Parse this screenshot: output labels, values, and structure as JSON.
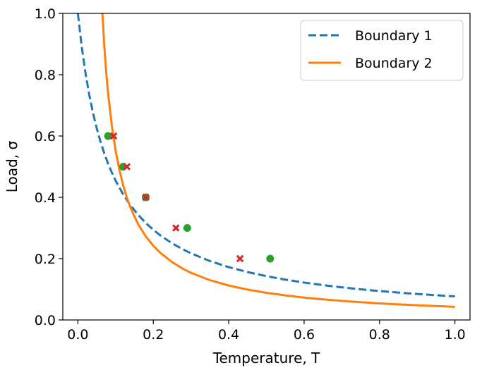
{
  "chart_data": {
    "type": "line",
    "title": "",
    "xlabel": "Temperature, T",
    "ylabel": "Load, σ",
    "xlim": [
      -0.04,
      1.04
    ],
    "ylim": [
      0.0,
      1.0
    ],
    "xticks": [
      0.0,
      0.2,
      0.4,
      0.6,
      0.8,
      1.0
    ],
    "xtick_labels": [
      "0.0",
      "0.2",
      "0.4",
      "0.6",
      "0.8",
      "1.0"
    ],
    "yticks": [
      0.0,
      0.2,
      0.4,
      0.6,
      0.8,
      1.0
    ],
    "ytick_labels": [
      "0.0",
      "0.2",
      "0.4",
      "0.6",
      "0.8",
      "1.0"
    ],
    "grid": false,
    "legend_position": "top-right",
    "series": [
      {
        "name": "Boundary 1",
        "style": "dashed",
        "color": "#1f77b4",
        "x": [
          0.0,
          0.01,
          0.02,
          0.03,
          0.04,
          0.05,
          0.06,
          0.07,
          0.08,
          0.09,
          0.1,
          0.12,
          0.14,
          0.16,
          0.18,
          0.2,
          0.22,
          0.25,
          0.28,
          0.3,
          0.35,
          0.4,
          0.45,
          0.5,
          0.55,
          0.6,
          0.65,
          0.7,
          0.75,
          0.8,
          0.85,
          0.9,
          0.95,
          1.0
        ],
        "y": [
          1.0,
          0.8929,
          0.8065,
          0.7353,
          0.6757,
          0.625,
          0.5814,
          0.5435,
          0.5102,
          0.4808,
          0.4545,
          0.4098,
          0.3731,
          0.3425,
          0.3165,
          0.2941,
          0.2747,
          0.25,
          0.2294,
          0.2174,
          0.1923,
          0.1724,
          0.1563,
          0.1429,
          0.1316,
          0.122,
          0.1136,
          0.1064,
          0.1,
          0.0943,
          0.0893,
          0.0847,
          0.0806,
          0.0769
        ]
      },
      {
        "name": "Boundary 2",
        "style": "solid",
        "color": "#ff7f0e",
        "x": [
          0.065,
          0.07,
          0.075,
          0.08,
          0.09,
          0.1,
          0.11,
          0.12,
          0.13,
          0.14,
          0.16,
          0.18,
          0.2,
          0.22,
          0.25,
          0.28,
          0.3,
          0.35,
          0.4,
          0.45,
          0.5,
          0.55,
          0.6,
          0.65,
          0.7,
          0.75,
          0.8,
          0.85,
          0.9,
          0.95,
          1.0
        ],
        "y": [
          1.0,
          0.8935,
          0.8099,
          0.7407,
          0.6337,
          0.5528,
          0.4901,
          0.4399,
          0.3989,
          0.3649,
          0.3121,
          0.2727,
          0.2421,
          0.2176,
          0.1885,
          0.166,
          0.1538,
          0.1299,
          0.1124,
          0.0991,
          0.0886,
          0.0801,
          0.0731,
          0.0672,
          0.0622,
          0.0579,
          0.0541,
          0.0508,
          0.0479,
          0.0453,
          0.0429
        ]
      }
    ],
    "points": [
      {
        "x": 0.08,
        "y": 0.6,
        "marker": "circle",
        "color": "#2ca02c"
      },
      {
        "x": 0.095,
        "y": 0.6,
        "marker": "x",
        "color": "#d62728"
      },
      {
        "x": 0.12,
        "y": 0.5,
        "marker": "circle",
        "color": "#2ca02c"
      },
      {
        "x": 0.13,
        "y": 0.5,
        "marker": "x",
        "color": "#d62728"
      },
      {
        "x": 0.18,
        "y": 0.4,
        "marker": "circle",
        "color": "#2ca02c"
      },
      {
        "x": 0.18,
        "y": 0.4,
        "marker": "x",
        "color": "#d62728"
      },
      {
        "x": 0.26,
        "y": 0.3,
        "marker": "x",
        "color": "#d62728"
      },
      {
        "x": 0.29,
        "y": 0.3,
        "marker": "circle",
        "color": "#2ca02c"
      },
      {
        "x": 0.43,
        "y": 0.2,
        "marker": "x",
        "color": "#d62728"
      },
      {
        "x": 0.51,
        "y": 0.2,
        "marker": "circle",
        "color": "#2ca02c"
      }
    ]
  }
}
